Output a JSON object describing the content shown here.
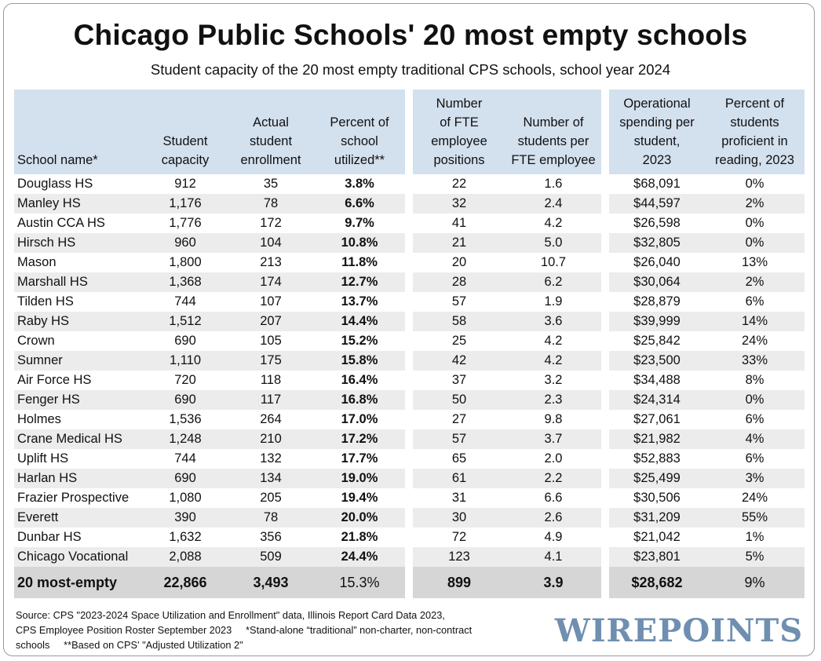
{
  "title": "Chicago Public Schools' 20 most empty schools",
  "subtitle": "Student capacity of the 20 most empty traditional CPS schools, school year 2024",
  "chart_data": {
    "type": "table",
    "columns": [
      "School name*",
      "Student capacity",
      "Actual student enrollment",
      "Percent of school utilized**",
      "Number of FTE employee positions",
      "Number of students per FTE employee",
      "Operational spending per student, 2023",
      "Percent of students proficient in reading, 2023"
    ],
    "rows": [
      [
        "Douglass HS",
        "912",
        "35",
        "3.8%",
        "22",
        "1.6",
        "$68,091",
        "0%"
      ],
      [
        "Manley HS",
        "1,176",
        "78",
        "6.6%",
        "32",
        "2.4",
        "$44,597",
        "2%"
      ],
      [
        "Austin CCA HS",
        "1,776",
        "172",
        "9.7%",
        "41",
        "4.2",
        "$26,598",
        "0%"
      ],
      [
        "Hirsch HS",
        "960",
        "104",
        "10.8%",
        "21",
        "5.0",
        "$32,805",
        "0%"
      ],
      [
        "Mason",
        "1,800",
        "213",
        "11.8%",
        "20",
        "10.7",
        "$26,040",
        "13%"
      ],
      [
        "Marshall HS",
        "1,368",
        "174",
        "12.7%",
        "28",
        "6.2",
        "$30,064",
        "2%"
      ],
      [
        "Tilden HS",
        "744",
        "107",
        "13.7%",
        "57",
        "1.9",
        "$28,879",
        "6%"
      ],
      [
        "Raby HS",
        "1,512",
        "207",
        "14.4%",
        "58",
        "3.6",
        "$39,999",
        "14%"
      ],
      [
        "Crown",
        "690",
        "105",
        "15.2%",
        "25",
        "4.2",
        "$25,842",
        "24%"
      ],
      [
        "Sumner",
        "1,110",
        "175",
        "15.8%",
        "42",
        "4.2",
        "$23,500",
        "33%"
      ],
      [
        "Air Force HS",
        "720",
        "118",
        "16.4%",
        "37",
        "3.2",
        "$34,488",
        "8%"
      ],
      [
        "Fenger HS",
        "690",
        "117",
        "16.8%",
        "50",
        "2.3",
        "$24,314",
        "0%"
      ],
      [
        "Holmes",
        "1,536",
        "264",
        "17.0%",
        "27",
        "9.8",
        "$27,061",
        "6%"
      ],
      [
        "Crane Medical HS",
        "1,248",
        "210",
        "17.2%",
        "57",
        "3.7",
        "$21,982",
        "4%"
      ],
      [
        "Uplift HS",
        "744",
        "132",
        "17.7%",
        "65",
        "2.0",
        "$52,883",
        "6%"
      ],
      [
        "Harlan HS",
        "690",
        "134",
        "19.0%",
        "61",
        "2.2",
        "$25,499",
        "3%"
      ],
      [
        "Frazier Prospective",
        "1,080",
        "205",
        "19.4%",
        "31",
        "6.6",
        "$30,506",
        "24%"
      ],
      [
        "Everett",
        "390",
        "78",
        "20.0%",
        "30",
        "2.6",
        "$31,209",
        "55%"
      ],
      [
        "Dunbar HS",
        "1,632",
        "356",
        "21.8%",
        "72",
        "4.9",
        "$21,042",
        "1%"
      ],
      [
        "Chicago Vocational",
        "2,088",
        "509",
        "24.4%",
        "123",
        "4.1",
        "$23,801",
        "5%"
      ]
    ],
    "total": [
      "20 most-empty",
      "22,866",
      "3,493",
      "15.3%",
      "899",
      "3.9",
      "$28,682",
      "9%"
    ]
  },
  "header_lines": {
    "name": [
      "School name*"
    ],
    "capacity": [
      "Student",
      "capacity"
    ],
    "enrollment": [
      "Actual",
      "student",
      "enrollment"
    ],
    "utilized": [
      "Percent of",
      "school",
      "utilized**"
    ],
    "fte": [
      "Number",
      "of FTE",
      "employee",
      "positions"
    ],
    "per_fte": [
      "Number of",
      "students per",
      "FTE employee"
    ],
    "spending": [
      "Operational",
      "spending per",
      "student,",
      "2023"
    ],
    "reading": [
      "Percent of",
      "students",
      "proficient in",
      "reading, 2023"
    ]
  },
  "footer": {
    "line1": "Source: CPS \"2023-2024 Space Utilization and Enrollment\" data, Illinois Report Card Data 2023,",
    "line2": "CPS Employee Position Roster September 2023     *Stand-alone “traditional” non-charter, non-contract",
    "line3": "schools     **Based on CPS' \"Adjusted Utilization 2\""
  },
  "logo": "WIREPOINTS"
}
